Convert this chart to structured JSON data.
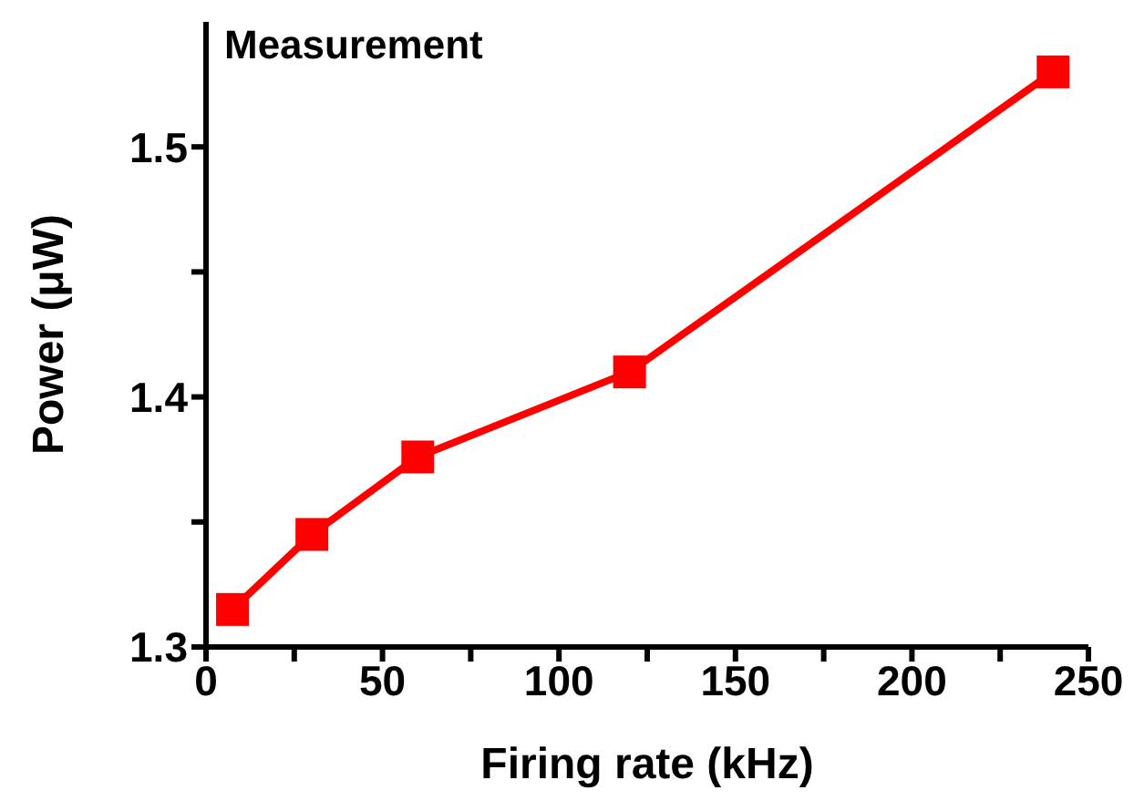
{
  "chart_data": {
    "type": "line",
    "title": "Measurement",
    "xlabel": "Firing rate (kHz)",
    "ylabel": "Power (μW)",
    "x": [
      7.5,
      30,
      60,
      120,
      240
    ],
    "series": [
      {
        "color": "#ff0000",
        "values": [
          1.315,
          1.345,
          1.376,
          1.41,
          1.53
        ]
      }
    ],
    "xlim": [
      0,
      250
    ],
    "xticks": [
      0,
      {
        "value": 25,
        "label": null
      },
      50,
      {
        "value": 75,
        "label": null
      },
      100,
      {
        "value": 125,
        "label": null
      },
      150,
      {
        "value": 175,
        "label": null
      },
      200,
      {
        "value": 225,
        "label": null
      },
      250
    ],
    "ylim": [
      1.3,
      1.55
    ],
    "yticks": [
      1.3,
      {
        "value": 1.35,
        "label": null
      },
      1.4,
      {
        "value": 1.45,
        "label": null
      },
      1.5
    ],
    "marker": "square",
    "line_style": "solid"
  }
}
